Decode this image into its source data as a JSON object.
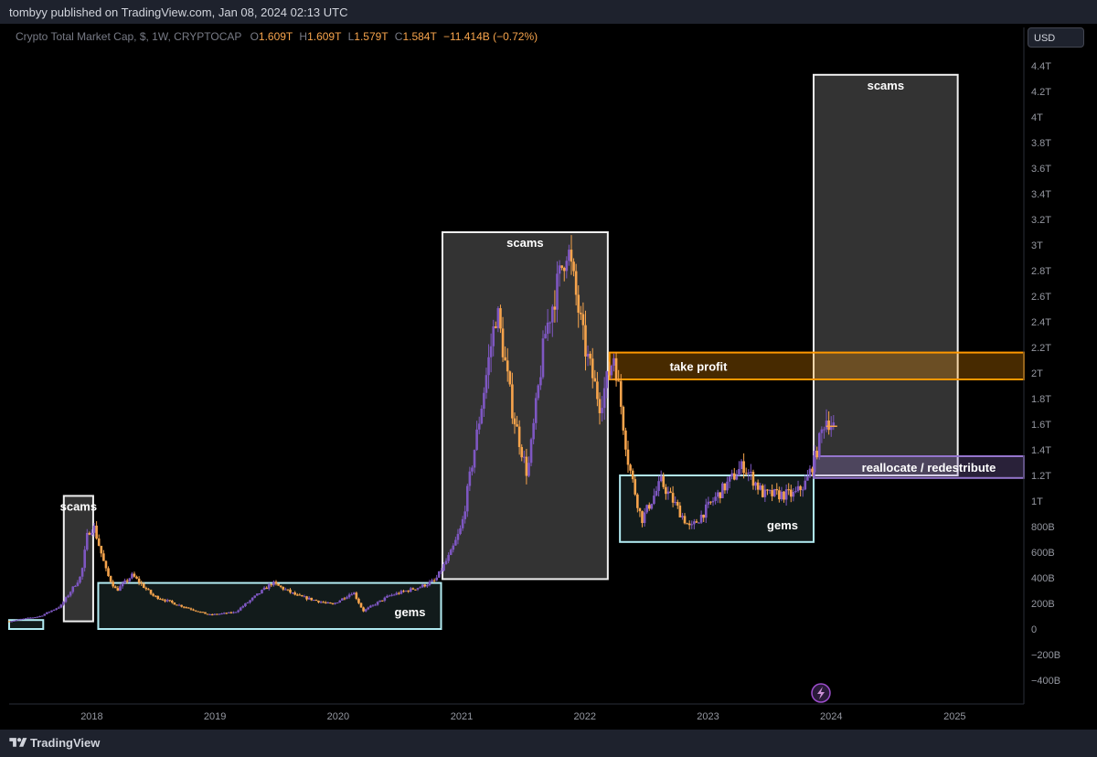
{
  "header": {
    "published": "tombyy published on TradingView.com, Jan 08, 2024 02:13 UTC"
  },
  "legend": {
    "symbol": "Crypto Total Market Cap, $, 1W, CRYPTOCAP",
    "o_label": "O",
    "o_value": "1.609T",
    "h_label": "H",
    "h_value": "1.609T",
    "l_label": "L",
    "l_value": "1.579T",
    "c_label": "C",
    "c_value": "1.584T",
    "change": "−11.414B (−0.72%)"
  },
  "currency": "USD",
  "footer": {
    "brand": "TradingView"
  },
  "colors": {
    "candle_up": "#7e57c2",
    "candle_down": "#f7a44c",
    "scams_fill": "#3a3a3a",
    "gems_border": "#b2ebf2",
    "take_profit": "#ff9800",
    "reallocate": "#9575cd"
  },
  "chart_data": {
    "type": "candlestick",
    "title": "Crypto Total Market Cap, $, 1W, CRYPTOCAP",
    "y_unit": "USD",
    "ylim": [
      -500000000000,
      4600000000000
    ],
    "xlim": [
      "2017-05-01",
      "2025-07-25"
    ],
    "y_ticks": [
      "4.4T",
      "4.2T",
      "4T",
      "3.8T",
      "3.6T",
      "3.4T",
      "3.2T",
      "3T",
      "2.8T",
      "2.6T",
      "2.4T",
      "2.2T",
      "2T",
      "1.8T",
      "1.6T",
      "1.4T",
      "1.2T",
      "1T",
      "800B",
      "600B",
      "400B",
      "200B",
      "0",
      "−200B",
      "−400B"
    ],
    "x_ticks": [
      "2018",
      "2019",
      "2020",
      "2021",
      "2022",
      "2023",
      "2024",
      "2025"
    ],
    "price_path": [
      [
        "2017-05-01",
        60
      ],
      [
        "2017-08-01",
        100
      ],
      [
        "2017-10-01",
        180
      ],
      [
        "2017-12-01",
        420
      ],
      [
        "2017-12-20",
        760
      ],
      [
        "2018-01-07",
        800
      ],
      [
        "2018-02-15",
        430
      ],
      [
        "2018-03-15",
        300
      ],
      [
        "2018-05-01",
        420
      ],
      [
        "2018-07-01",
        260
      ],
      [
        "2018-09-01",
        200
      ],
      [
        "2018-12-15",
        110
      ],
      [
        "2019-03-01",
        130
      ],
      [
        "2019-06-20",
        360
      ],
      [
        "2019-09-01",
        260
      ],
      [
        "2019-12-15",
        190
      ],
      [
        "2020-02-15",
        290
      ],
      [
        "2020-03-15",
        140
      ],
      [
        "2020-06-01",
        260
      ],
      [
        "2020-09-01",
        330
      ],
      [
        "2020-10-15",
        380
      ],
      [
        "2020-12-01",
        600
      ],
      [
        "2021-01-01",
        800
      ],
      [
        "2021-02-20",
        1600
      ],
      [
        "2021-04-15",
        2500
      ],
      [
        "2021-06-01",
        1700
      ],
      [
        "2021-07-15",
        1200
      ],
      [
        "2021-09-05",
        2300
      ],
      [
        "2021-11-10",
        3000
      ],
      [
        "2022-01-01",
        2200
      ],
      [
        "2022-02-15",
        1750
      ],
      [
        "2022-03-29",
        2150
      ],
      [
        "2022-05-10",
        1300
      ],
      [
        "2022-06-18",
        850
      ],
      [
        "2022-08-15",
        1150
      ],
      [
        "2022-11-10",
        780
      ],
      [
        "2023-01-15",
        1000
      ],
      [
        "2023-04-15",
        1280
      ],
      [
        "2023-06-15",
        1050
      ],
      [
        "2023-09-15",
        1050
      ],
      [
        "2023-10-20",
        1150
      ],
      [
        "2023-11-15",
        1350
      ],
      [
        "2023-12-15",
        1650
      ],
      [
        "2024-01-08",
        1584
      ]
    ],
    "last": {
      "date": "2024-01-08",
      "open": 1.609,
      "high": 1.609,
      "low": 1.579,
      "close": 1.584,
      "unit": "T"
    },
    "annotations": [
      {
        "label": "scams",
        "kind": "box-dark",
        "x0": "2017-10-10",
        "x1": "2018-01-05",
        "y0": 60,
        "y1": 1040
      },
      {
        "label": "gems",
        "kind": "box-gems",
        "x0": "2018-01-20",
        "x1": "2020-11-01",
        "y0": 0,
        "y1": 360
      },
      {
        "label": "",
        "kind": "box-gems",
        "x0": "2017-05-01",
        "x1": "2017-08-10",
        "y0": 0,
        "y1": 70
      },
      {
        "label": "scams",
        "kind": "box-dark",
        "x0": "2020-11-05",
        "x1": "2022-03-10",
        "y0": 390,
        "y1": 3100
      },
      {
        "label": "gems",
        "kind": "box-gems",
        "x0": "2022-04-15",
        "x1": "2023-11-10",
        "y0": 680,
        "y1": 1200
      },
      {
        "label": "scams",
        "kind": "box-dark",
        "x0": "2023-11-10",
        "x1": "2025-01-10",
        "y0": 1200,
        "y1": 4330
      },
      {
        "label": "take profit",
        "kind": "band-orange",
        "x0": "2022-03-15",
        "x1": "2025-07-25",
        "y0": 1950,
        "y1": 2160
      },
      {
        "label": "reallocate / redestribute",
        "kind": "band-purple",
        "x0": "2023-11-10",
        "x1": "2025-07-25",
        "y0": 1180,
        "y1": 1350
      }
    ],
    "annotations_unit": "B"
  }
}
